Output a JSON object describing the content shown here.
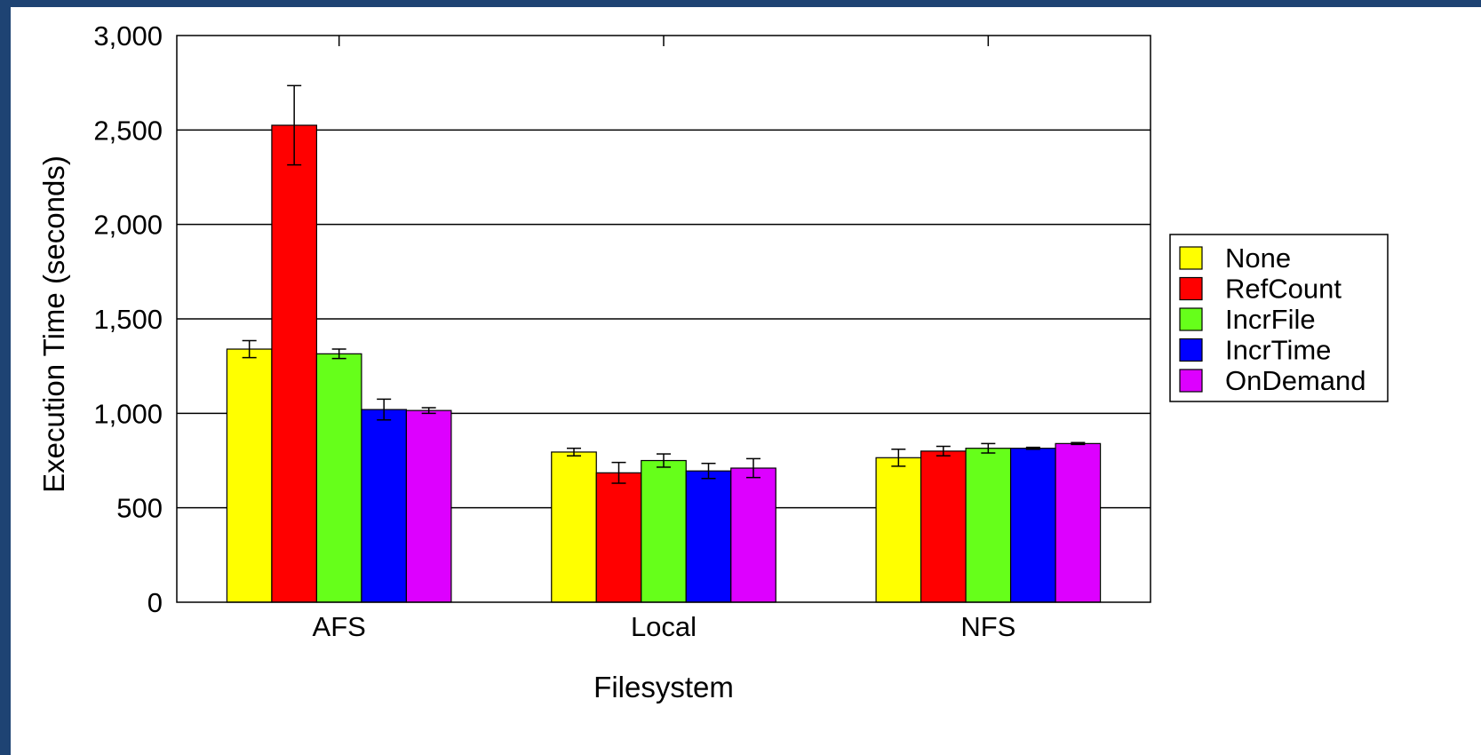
{
  "chart_data": {
    "type": "bar",
    "title": "",
    "xlabel": "Filesystem",
    "ylabel": "Execution Time (seconds)",
    "ylim": [
      0,
      3000
    ],
    "yticks": [
      "0",
      "500",
      "1,000",
      "1,500",
      "2,000",
      "2,500",
      "3,000"
    ],
    "ytick_values": [
      0,
      500,
      1000,
      1500,
      2000,
      2500,
      3000
    ],
    "grid": true,
    "legend_position": "right",
    "categories": [
      "AFS",
      "Local",
      "NFS"
    ],
    "series": [
      {
        "name": "None",
        "color": "#ffff00",
        "values": [
          1340,
          795,
          765
        ],
        "errors": [
          45,
          20,
          45
        ]
      },
      {
        "name": "RefCount",
        "color": "#ff0000",
        "values": [
          2525,
          685,
          800
        ],
        "errors": [
          210,
          55,
          25
        ]
      },
      {
        "name": "IncrFile",
        "color": "#66ff1a",
        "values": [
          1315,
          750,
          815
        ],
        "errors": [
          25,
          35,
          25
        ]
      },
      {
        "name": "IncrTime",
        "color": "#0000ff",
        "values": [
          1020,
          695,
          815
        ],
        "errors": [
          55,
          40,
          5
        ]
      },
      {
        "name": "OnDemand",
        "color": "#dd00ff",
        "values": [
          1015,
          710,
          840
        ],
        "errors": [
          15,
          50,
          5
        ]
      }
    ]
  }
}
